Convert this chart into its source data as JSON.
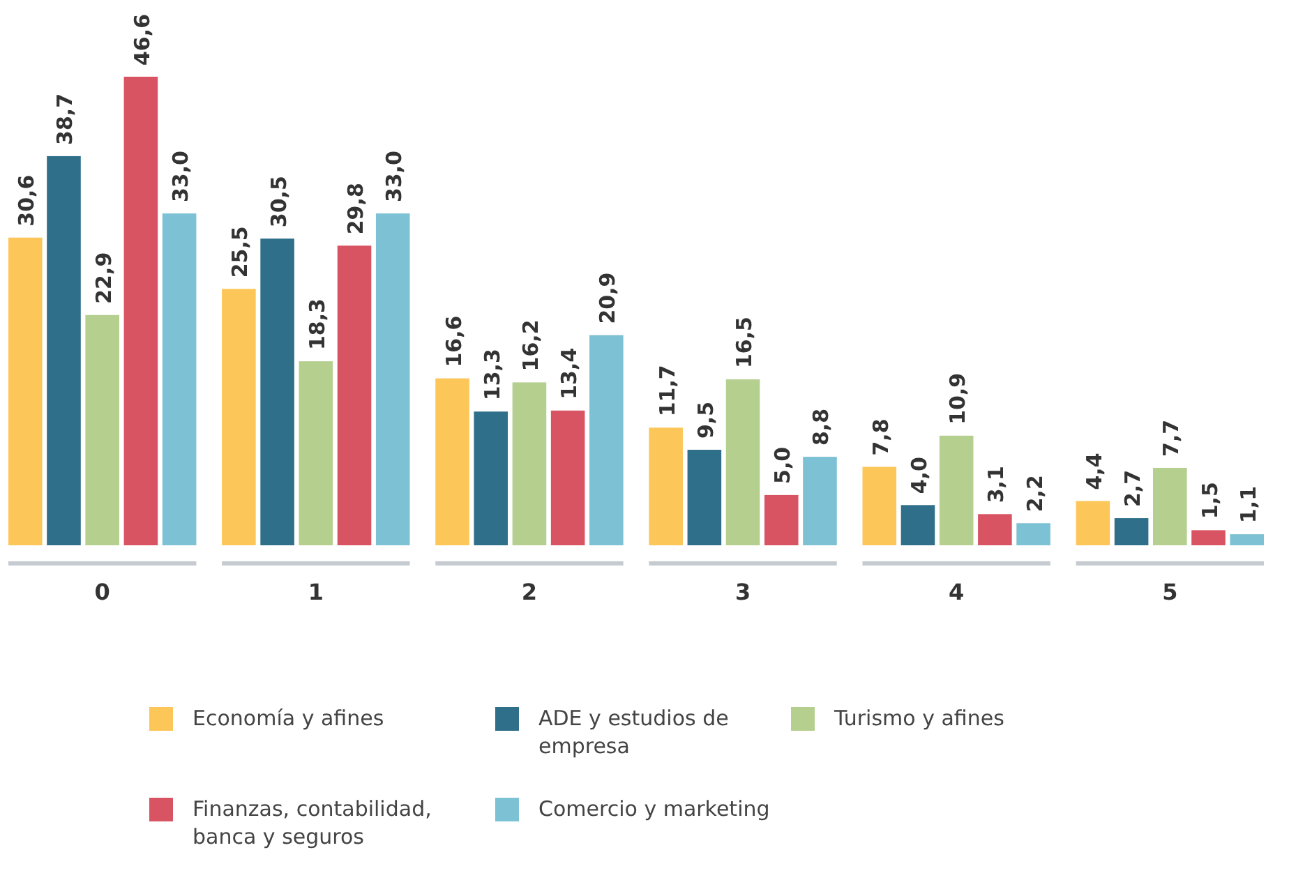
{
  "chart_data": {
    "type": "bar",
    "categories": [
      "0",
      "1",
      "2",
      "3",
      "4",
      "5"
    ],
    "series": [
      {
        "name": "Economía y afines",
        "color": "#fdc659",
        "values": [
          30.6,
          25.5,
          16.6,
          11.7,
          7.8,
          4.4
        ],
        "value_labels": [
          "30,6",
          "25,5",
          "16,6",
          "11,7",
          "7,8",
          "4,4"
        ]
      },
      {
        "name": "ADE y estudios de empresa",
        "color": "#2f6f8a",
        "values": [
          38.7,
          30.5,
          13.3,
          9.5,
          4.0,
          2.7
        ],
        "value_labels": [
          "38,7",
          "30,5",
          "13,3",
          "9,5",
          "4,0",
          "2,7"
        ]
      },
      {
        "name": "Turismo y afines",
        "color": "#b5cf8f",
        "values": [
          22.9,
          18.3,
          16.2,
          16.5,
          10.9,
          7.7
        ],
        "value_labels": [
          "22,9",
          "18,3",
          "16,2",
          "16,5",
          "10,9",
          "7,7"
        ]
      },
      {
        "name": "Finanzas, contabilidad, banca y seguros",
        "color": "#d95463",
        "values": [
          46.6,
          29.8,
          13.4,
          5.0,
          3.1,
          1.5
        ],
        "value_labels": [
          "46,6",
          "29,8",
          "13,4",
          "5,0",
          "3,1",
          "1,5"
        ]
      },
      {
        "name": "Comercio y marketing",
        "color": "#7cc1d4",
        "values": [
          33.0,
          33.0,
          20.9,
          8.8,
          2.2,
          1.1
        ],
        "value_labels": [
          "33,0",
          "33,0",
          "20,9",
          "8,8",
          "2,2",
          "1,1"
        ]
      }
    ],
    "legend": "bottom"
  }
}
